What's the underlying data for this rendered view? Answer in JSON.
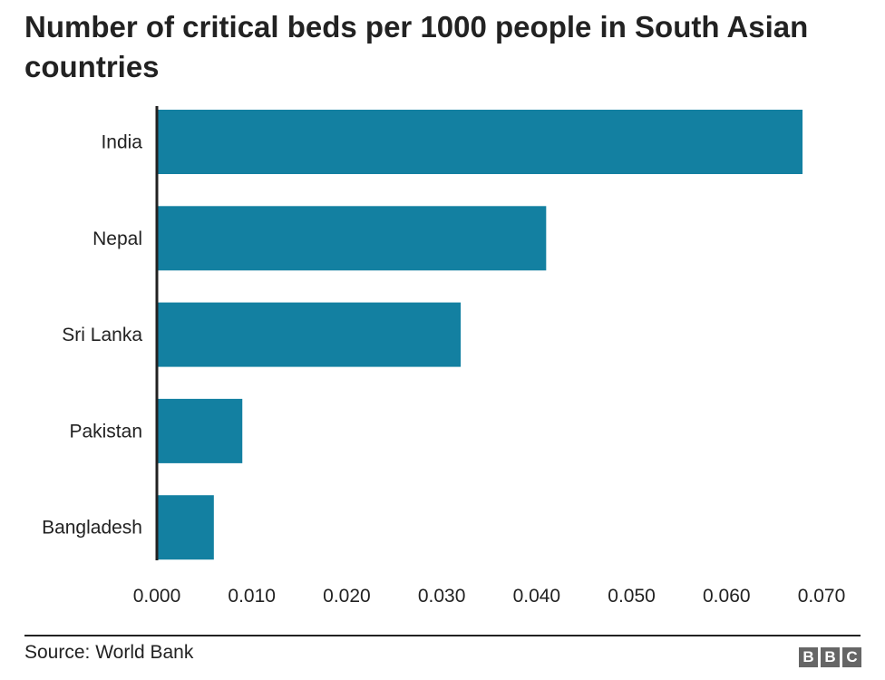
{
  "chart_data": {
    "type": "bar",
    "orientation": "horizontal",
    "title": "Number of critical beds per 1000 people in South Asian countries",
    "categories": [
      "India",
      "Nepal",
      "Sri Lanka",
      "Pakistan",
      "Bangladesh"
    ],
    "values": [
      0.068,
      0.041,
      0.032,
      0.009,
      0.006
    ],
    "xlabel": "",
    "ylabel": "",
    "xlim": [
      0,
      0.07
    ],
    "xticks": [
      "0.000",
      "0.010",
      "0.020",
      "0.030",
      "0.040",
      "0.050",
      "0.060",
      "0.070"
    ],
    "grid": false,
    "bar_color": "#1380A1"
  },
  "footer": {
    "source": "Source: World Bank",
    "logo": [
      "B",
      "B",
      "C"
    ]
  }
}
